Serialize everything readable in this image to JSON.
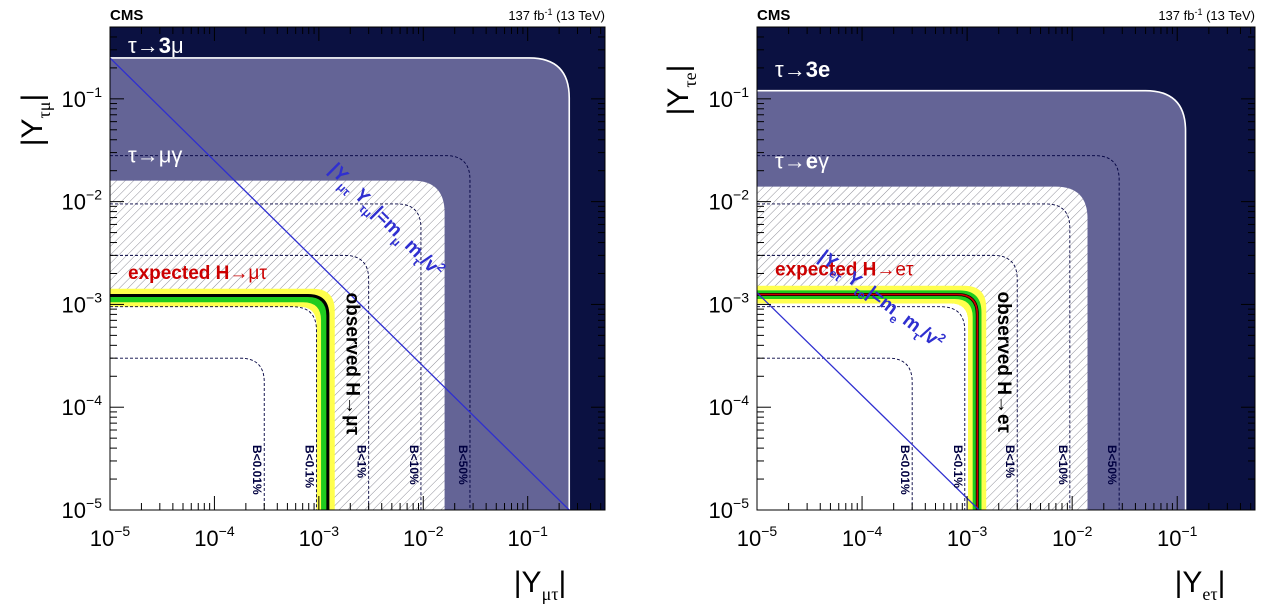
{
  "colors": {
    "excluded_dark": "#0b1141",
    "excluded_mid": "#646496",
    "three_body_line": "#ffffff",
    "hatch": "#8f8f99",
    "naturalness_line": "#2f2fd0",
    "naturalness_text": "#2f2fd0",
    "expected_text": "#cc0000",
    "band_yellow": "#ffff4d",
    "band_green": "#1fcc1f",
    "observed_line": "#000000",
    "expected_line": "#cc0000",
    "contour_text": "#000040"
  },
  "chart_data": [
    {
      "type": "contour",
      "experiment": "CMS",
      "lumi_text": {
        "base": "137 fb",
        "sup": "-1",
        "tail": " (13 TeV)"
      },
      "xlabel": {
        "main": "|Y",
        "sub": "μτ",
        "close": "|"
      },
      "ylabel": {
        "main": "|Y",
        "sub": "τμ",
        "close": "|"
      },
      "xscale": "log",
      "yscale": "log",
      "xlim": [
        1e-05,
        0.55
      ],
      "ylim": [
        1e-05,
        0.5
      ],
      "xtick_labels": [
        {
          "value": 1e-05,
          "base": "10",
          "exp": "−5"
        },
        {
          "value": 0.0001,
          "base": "10",
          "exp": "−4"
        },
        {
          "value": 0.001,
          "base": "10",
          "exp": "−3"
        },
        {
          "value": 0.01,
          "base": "10",
          "exp": "−2"
        },
        {
          "value": 0.1,
          "base": "10",
          "exp": "−1"
        }
      ],
      "ytick_labels": [
        {
          "value": 1e-05,
          "base": "10",
          "exp": "−5"
        },
        {
          "value": 0.0001,
          "base": "10",
          "exp": "−4"
        },
        {
          "value": 0.001,
          "base": "10",
          "exp": "−3"
        },
        {
          "value": 0.01,
          "base": "10",
          "exp": "−2"
        },
        {
          "value": 0.1,
          "base": "10",
          "exp": "−1"
        }
      ],
      "limit_3body": {
        "value": 0.25,
        "label_pre": "τ→",
        "label_bold": "3",
        "label_post": "μ"
      },
      "limit_radiative": {
        "value": 0.016,
        "label_pre": "τ→",
        "label_bold": "",
        "label_post": "μγ"
      },
      "expected": {
        "value": 0.00115,
        "band1": [
          0.00105,
          0.00126
        ],
        "band2": [
          0.00095,
          0.00142
        ],
        "label_pre": "expected H→",
        "label_post": "μτ"
      },
      "observed": {
        "value": 0.00122,
        "label": "observed H→μτ"
      },
      "br_contours": [
        {
          "label": "B<0.01%",
          "value": 0.0003
        },
        {
          "label": "B<0.1%",
          "value": 0.00095
        },
        {
          "label": "B<1%",
          "value": 0.003
        },
        {
          "label": "B<10%",
          "value": 0.0095
        },
        {
          "label": "B<50%",
          "value": 0.028
        }
      ],
      "naturalness": {
        "product": 2.5e-06,
        "label_main": "|Y",
        "sub1": "μτ",
        "mid": " Y",
        "sub2": "τμ",
        "eq": "|=m",
        "sub3": "μ",
        "mid2": " m",
        "sub4": "τ",
        "tail": "/v",
        "sup": "2"
      }
    },
    {
      "type": "contour",
      "experiment": "CMS",
      "lumi_text": {
        "base": "137 fb",
        "sup": "-1",
        "tail": " (13 TeV)"
      },
      "xlabel": {
        "main": "|Y",
        "sub": "eτ",
        "close": "|"
      },
      "ylabel": {
        "main": "|Y",
        "sub": "τe",
        "close": "|"
      },
      "xscale": "log",
      "yscale": "log",
      "xlim": [
        1e-05,
        0.55
      ],
      "ylim": [
        1e-05,
        0.5
      ],
      "xtick_labels": [
        {
          "value": 1e-05,
          "base": "10",
          "exp": "−5"
        },
        {
          "value": 0.0001,
          "base": "10",
          "exp": "−4"
        },
        {
          "value": 0.001,
          "base": "10",
          "exp": "−3"
        },
        {
          "value": 0.01,
          "base": "10",
          "exp": "−2"
        },
        {
          "value": 0.1,
          "base": "10",
          "exp": "−1"
        }
      ],
      "ytick_labels": [
        {
          "value": 1e-05,
          "base": "10",
          "exp": "−5"
        },
        {
          "value": 0.0001,
          "base": "10",
          "exp": "−4"
        },
        {
          "value": 0.001,
          "base": "10",
          "exp": "−3"
        },
        {
          "value": 0.01,
          "base": "10",
          "exp": "−2"
        },
        {
          "value": 0.1,
          "base": "10",
          "exp": "−1"
        }
      ],
      "limit_3body": {
        "value": 0.12,
        "label_pre": "τ→",
        "label_bold": "3e",
        "label_post": ""
      },
      "limit_radiative": {
        "value": 0.014,
        "label_pre": "τ→",
        "label_bold": "e",
        "label_post": "γ"
      },
      "expected": {
        "value": 0.00125,
        "band1": [
          0.00113,
          0.00137
        ],
        "band2": [
          0.00102,
          0.00152
        ],
        "label_pre": "expected H→",
        "label_post": "eτ"
      },
      "observed": {
        "value": 0.00125,
        "label": "observed H→eτ"
      },
      "br_contours": [
        {
          "label": "B<0.01%",
          "value": 0.0003
        },
        {
          "label": "B<0.1%",
          "value": 0.00095
        },
        {
          "label": "B<1%",
          "value": 0.003
        },
        {
          "label": "B<10%",
          "value": 0.0095
        },
        {
          "label": "B<50%",
          "value": 0.028
        }
      ],
      "naturalness": {
        "product": 1.3e-08,
        "label_main": "|Y",
        "sub1": "eτ",
        "mid": " Y",
        "sub2": "τe",
        "eq": "|=m",
        "sub3": "e",
        "mid2": " m",
        "sub4": "τ",
        "tail": "/v",
        "sup": "2"
      }
    }
  ]
}
